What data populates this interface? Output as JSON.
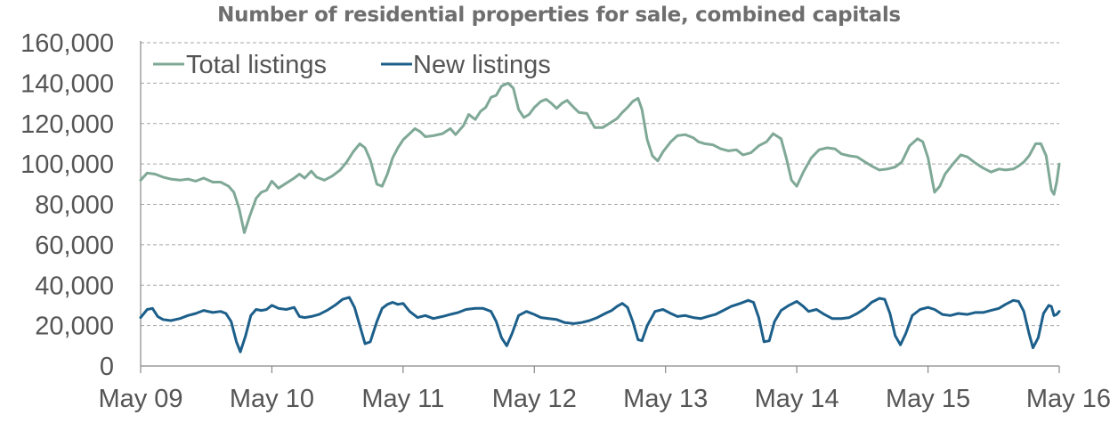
{
  "chart_data": {
    "type": "line",
    "title": "Number of residential properties for sale, combined capitals",
    "xlabel": "",
    "ylabel": "",
    "ylim": [
      0,
      160000
    ],
    "y_ticks": [
      {
        "value": 0,
        "label": "0"
      },
      {
        "value": 20000,
        "label": "20,000"
      },
      {
        "value": 40000,
        "label": "40,000"
      },
      {
        "value": 60000,
        "label": "60,000"
      },
      {
        "value": 80000,
        "label": "80,000"
      },
      {
        "value": 100000,
        "label": "100,000"
      },
      {
        "value": 120000,
        "label": "120,000"
      },
      {
        "value": 140000,
        "label": "140,000"
      },
      {
        "value": 160000,
        "label": "160,000"
      }
    ],
    "x_ticks": [
      {
        "value": 2009.33,
        "label": "May 09"
      },
      {
        "value": 2010.33,
        "label": "May 10"
      },
      {
        "value": 2011.33,
        "label": "May 11"
      },
      {
        "value": 2012.33,
        "label": "May 12"
      },
      {
        "value": 2013.33,
        "label": "May 13"
      },
      {
        "value": 2014.33,
        "label": "May 14"
      },
      {
        "value": 2015.33,
        "label": "May 15"
      },
      {
        "value": 2016.33,
        "label": "May 16"
      }
    ],
    "xlim": [
      2009.33,
      2016.33
    ],
    "grid": "horizontal-dashed",
    "legend": "top-left",
    "series": [
      {
        "name": "Total listings",
        "color": "#7fa897",
        "points": [
          [
            2009.33,
            92000
          ],
          [
            2009.38,
            95500
          ],
          [
            2009.44,
            95000
          ],
          [
            2009.5,
            93500
          ],
          [
            2009.56,
            92500
          ],
          [
            2009.63,
            92000
          ],
          [
            2009.69,
            92500
          ],
          [
            2009.75,
            91500
          ],
          [
            2009.81,
            93000
          ],
          [
            2009.88,
            91000
          ],
          [
            2009.94,
            91000
          ],
          [
            2010.0,
            89000
          ],
          [
            2010.04,
            86000
          ],
          [
            2010.08,
            78000
          ],
          [
            2010.12,
            66000
          ],
          [
            2010.16,
            74000
          ],
          [
            2010.21,
            83000
          ],
          [
            2010.25,
            86000
          ],
          [
            2010.29,
            87000
          ],
          [
            2010.33,
            91500
          ],
          [
            2010.38,
            88000
          ],
          [
            2010.44,
            90500
          ],
          [
            2010.5,
            93000
          ],
          [
            2010.54,
            95000
          ],
          [
            2010.58,
            93000
          ],
          [
            2010.63,
            96500
          ],
          [
            2010.67,
            93500
          ],
          [
            2010.73,
            92000
          ],
          [
            2010.79,
            94000
          ],
          [
            2010.85,
            97000
          ],
          [
            2010.9,
            101000
          ],
          [
            2010.95,
            106000
          ],
          [
            2011.0,
            110000
          ],
          [
            2011.04,
            108000
          ],
          [
            2011.08,
            102000
          ],
          [
            2011.13,
            90000
          ],
          [
            2011.17,
            89000
          ],
          [
            2011.21,
            95000
          ],
          [
            2011.25,
            103000
          ],
          [
            2011.29,
            108000
          ],
          [
            2011.33,
            112000
          ],
          [
            2011.38,
            115000
          ],
          [
            2011.42,
            117500
          ],
          [
            2011.46,
            116000
          ],
          [
            2011.5,
            113500
          ],
          [
            2011.56,
            114000
          ],
          [
            2011.63,
            115000
          ],
          [
            2011.69,
            117500
          ],
          [
            2011.73,
            114500
          ],
          [
            2011.79,
            119000
          ],
          [
            2011.83,
            124500
          ],
          [
            2011.88,
            122000
          ],
          [
            2011.92,
            126000
          ],
          [
            2011.96,
            128000
          ],
          [
            2012.0,
            133000
          ],
          [
            2012.04,
            134000
          ],
          [
            2012.08,
            138500
          ],
          [
            2012.13,
            140000
          ],
          [
            2012.17,
            137500
          ],
          [
            2012.21,
            127000
          ],
          [
            2012.25,
            123000
          ],
          [
            2012.29,
            124500
          ],
          [
            2012.33,
            128000
          ],
          [
            2012.38,
            131000
          ],
          [
            2012.42,
            132000
          ],
          [
            2012.46,
            130000
          ],
          [
            2012.5,
            127500
          ],
          [
            2012.54,
            130000
          ],
          [
            2012.58,
            131500
          ],
          [
            2012.63,
            128000
          ],
          [
            2012.67,
            125500
          ],
          [
            2012.73,
            125000
          ],
          [
            2012.79,
            118000
          ],
          [
            2012.85,
            118000
          ],
          [
            2012.9,
            120000
          ],
          [
            2012.96,
            122500
          ],
          [
            2013.0,
            125500
          ],
          [
            2013.04,
            128000
          ],
          [
            2013.08,
            131000
          ],
          [
            2013.12,
            132500
          ],
          [
            2013.15,
            127000
          ],
          [
            2013.19,
            112000
          ],
          [
            2013.23,
            104000
          ],
          [
            2013.27,
            101500
          ],
          [
            2013.31,
            106000
          ],
          [
            2013.37,
            111000
          ],
          [
            2013.42,
            114000
          ],
          [
            2013.48,
            114500
          ],
          [
            2013.54,
            113000
          ],
          [
            2013.58,
            111000
          ],
          [
            2013.63,
            110000
          ],
          [
            2013.69,
            109500
          ],
          [
            2013.75,
            107500
          ],
          [
            2013.81,
            106500
          ],
          [
            2013.87,
            107000
          ],
          [
            2013.92,
            104500
          ],
          [
            2013.98,
            105500
          ],
          [
            2014.04,
            109000
          ],
          [
            2014.1,
            111000
          ],
          [
            2014.15,
            115000
          ],
          [
            2014.21,
            112500
          ],
          [
            2014.25,
            103000
          ],
          [
            2014.29,
            92000
          ],
          [
            2014.33,
            89000
          ],
          [
            2014.38,
            96000
          ],
          [
            2014.44,
            103000
          ],
          [
            2014.5,
            107000
          ],
          [
            2014.56,
            108000
          ],
          [
            2014.62,
            107500
          ],
          [
            2014.67,
            105000
          ],
          [
            2014.73,
            104000
          ],
          [
            2014.79,
            103500
          ],
          [
            2014.85,
            101000
          ],
          [
            2014.9,
            99000
          ],
          [
            2014.96,
            97000
          ],
          [
            2015.02,
            97500
          ],
          [
            2015.08,
            98500
          ],
          [
            2015.13,
            101000
          ],
          [
            2015.19,
            109000
          ],
          [
            2015.25,
            112500
          ],
          [
            2015.29,
            111000
          ],
          [
            2015.33,
            103000
          ],
          [
            2015.38,
            86000
          ],
          [
            2015.42,
            89000
          ],
          [
            2015.46,
            95000
          ],
          [
            2015.52,
            100000
          ],
          [
            2015.58,
            104500
          ],
          [
            2015.63,
            103500
          ],
          [
            2015.69,
            100500
          ],
          [
            2015.75,
            98000
          ],
          [
            2015.81,
            96000
          ],
          [
            2015.87,
            97500
          ],
          [
            2015.92,
            97000
          ],
          [
            2015.98,
            97500
          ],
          [
            2016.02,
            99000
          ],
          [
            2016.06,
            101000
          ],
          [
            2016.1,
            104000
          ],
          [
            2016.15,
            110000
          ],
          [
            2016.19,
            110000
          ],
          [
            2016.23,
            104000
          ],
          [
            2016.27,
            87000
          ],
          [
            2016.29,
            85000
          ],
          [
            2016.31,
            91000
          ],
          [
            2016.33,
            100000
          ]
        ]
      },
      {
        "name": "New listings",
        "color": "#1c5f8a",
        "points": [
          [
            2009.33,
            24000
          ],
          [
            2009.38,
            28000
          ],
          [
            2009.42,
            28500
          ],
          [
            2009.46,
            24500
          ],
          [
            2009.5,
            23000
          ],
          [
            2009.56,
            22500
          ],
          [
            2009.63,
            23500
          ],
          [
            2009.69,
            25000
          ],
          [
            2009.75,
            26000
          ],
          [
            2009.81,
            27500
          ],
          [
            2009.88,
            26500
          ],
          [
            2009.94,
            27000
          ],
          [
            2009.98,
            26000
          ],
          [
            2010.02,
            22000
          ],
          [
            2010.06,
            12000
          ],
          [
            2010.09,
            7000
          ],
          [
            2010.13,
            15000
          ],
          [
            2010.17,
            25000
          ],
          [
            2010.21,
            28000
          ],
          [
            2010.25,
            27500
          ],
          [
            2010.29,
            28000
          ],
          [
            2010.33,
            30000
          ],
          [
            2010.38,
            28500
          ],
          [
            2010.44,
            28000
          ],
          [
            2010.5,
            29000
          ],
          [
            2010.54,
            24500
          ],
          [
            2010.58,
            24000
          ],
          [
            2010.63,
            24500
          ],
          [
            2010.69,
            25500
          ],
          [
            2010.75,
            27500
          ],
          [
            2010.81,
            30000
          ],
          [
            2010.87,
            33000
          ],
          [
            2010.92,
            34000
          ],
          [
            2010.96,
            29000
          ],
          [
            2011.0,
            20000
          ],
          [
            2011.04,
            11000
          ],
          [
            2011.08,
            12000
          ],
          [
            2011.13,
            22000
          ],
          [
            2011.17,
            28500
          ],
          [
            2011.21,
            30500
          ],
          [
            2011.25,
            31500
          ],
          [
            2011.29,
            30500
          ],
          [
            2011.33,
            31000
          ],
          [
            2011.38,
            27000
          ],
          [
            2011.44,
            24000
          ],
          [
            2011.5,
            25000
          ],
          [
            2011.56,
            23500
          ],
          [
            2011.63,
            24500
          ],
          [
            2011.69,
            25500
          ],
          [
            2011.75,
            26500
          ],
          [
            2011.81,
            28000
          ],
          [
            2011.88,
            28500
          ],
          [
            2011.94,
            28500
          ],
          [
            2012.0,
            27000
          ],
          [
            2012.04,
            22000
          ],
          [
            2012.08,
            14000
          ],
          [
            2012.12,
            10000
          ],
          [
            2012.16,
            16000
          ],
          [
            2012.21,
            25000
          ],
          [
            2012.27,
            27000
          ],
          [
            2012.33,
            25500
          ],
          [
            2012.38,
            24000
          ],
          [
            2012.44,
            23500
          ],
          [
            2012.5,
            23000
          ],
          [
            2012.56,
            21500
          ],
          [
            2012.63,
            21000
          ],
          [
            2012.69,
            21500
          ],
          [
            2012.75,
            22500
          ],
          [
            2012.81,
            24000
          ],
          [
            2012.87,
            26000
          ],
          [
            2012.92,
            27500
          ],
          [
            2012.96,
            29500
          ],
          [
            2013.0,
            31000
          ],
          [
            2013.04,
            29000
          ],
          [
            2013.08,
            22000
          ],
          [
            2013.12,
            13000
          ],
          [
            2013.15,
            12500
          ],
          [
            2013.19,
            20000
          ],
          [
            2013.25,
            27000
          ],
          [
            2013.31,
            28000
          ],
          [
            2013.37,
            26000
          ],
          [
            2013.42,
            24500
          ],
          [
            2013.48,
            25000
          ],
          [
            2013.54,
            24000
          ],
          [
            2013.6,
            23500
          ],
          [
            2013.65,
            24500
          ],
          [
            2013.71,
            25500
          ],
          [
            2013.77,
            27500
          ],
          [
            2013.83,
            29500
          ],
          [
            2013.9,
            31000
          ],
          [
            2013.96,
            32500
          ],
          [
            2014.0,
            31500
          ],
          [
            2014.04,
            24000
          ],
          [
            2014.08,
            12000
          ],
          [
            2014.12,
            12500
          ],
          [
            2014.16,
            22000
          ],
          [
            2014.21,
            27500
          ],
          [
            2014.27,
            30000
          ],
          [
            2014.33,
            32000
          ],
          [
            2014.38,
            29500
          ],
          [
            2014.42,
            27000
          ],
          [
            2014.48,
            28000
          ],
          [
            2014.54,
            25500
          ],
          [
            2014.6,
            23500
          ],
          [
            2014.67,
            23500
          ],
          [
            2014.73,
            24000
          ],
          [
            2014.79,
            26000
          ],
          [
            2014.85,
            28500
          ],
          [
            2014.9,
            31500
          ],
          [
            2014.96,
            33500
          ],
          [
            2015.0,
            33000
          ],
          [
            2015.04,
            26000
          ],
          [
            2015.08,
            15000
          ],
          [
            2015.12,
            10500
          ],
          [
            2015.16,
            16000
          ],
          [
            2015.21,
            25000
          ],
          [
            2015.27,
            28000
          ],
          [
            2015.33,
            29000
          ],
          [
            2015.38,
            28000
          ],
          [
            2015.44,
            25500
          ],
          [
            2015.5,
            25000
          ],
          [
            2015.56,
            26000
          ],
          [
            2015.63,
            25500
          ],
          [
            2015.69,
            26500
          ],
          [
            2015.75,
            26500
          ],
          [
            2015.81,
            27500
          ],
          [
            2015.87,
            28500
          ],
          [
            2015.92,
            30500
          ],
          [
            2015.98,
            32500
          ],
          [
            2016.02,
            32000
          ],
          [
            2016.06,
            27000
          ],
          [
            2016.1,
            16000
          ],
          [
            2016.13,
            9000
          ],
          [
            2016.17,
            14000
          ],
          [
            2016.21,
            26000
          ],
          [
            2016.25,
            30000
          ],
          [
            2016.27,
            29500
          ],
          [
            2016.29,
            25000
          ],
          [
            2016.31,
            25500
          ],
          [
            2016.33,
            27000
          ]
        ]
      }
    ]
  }
}
